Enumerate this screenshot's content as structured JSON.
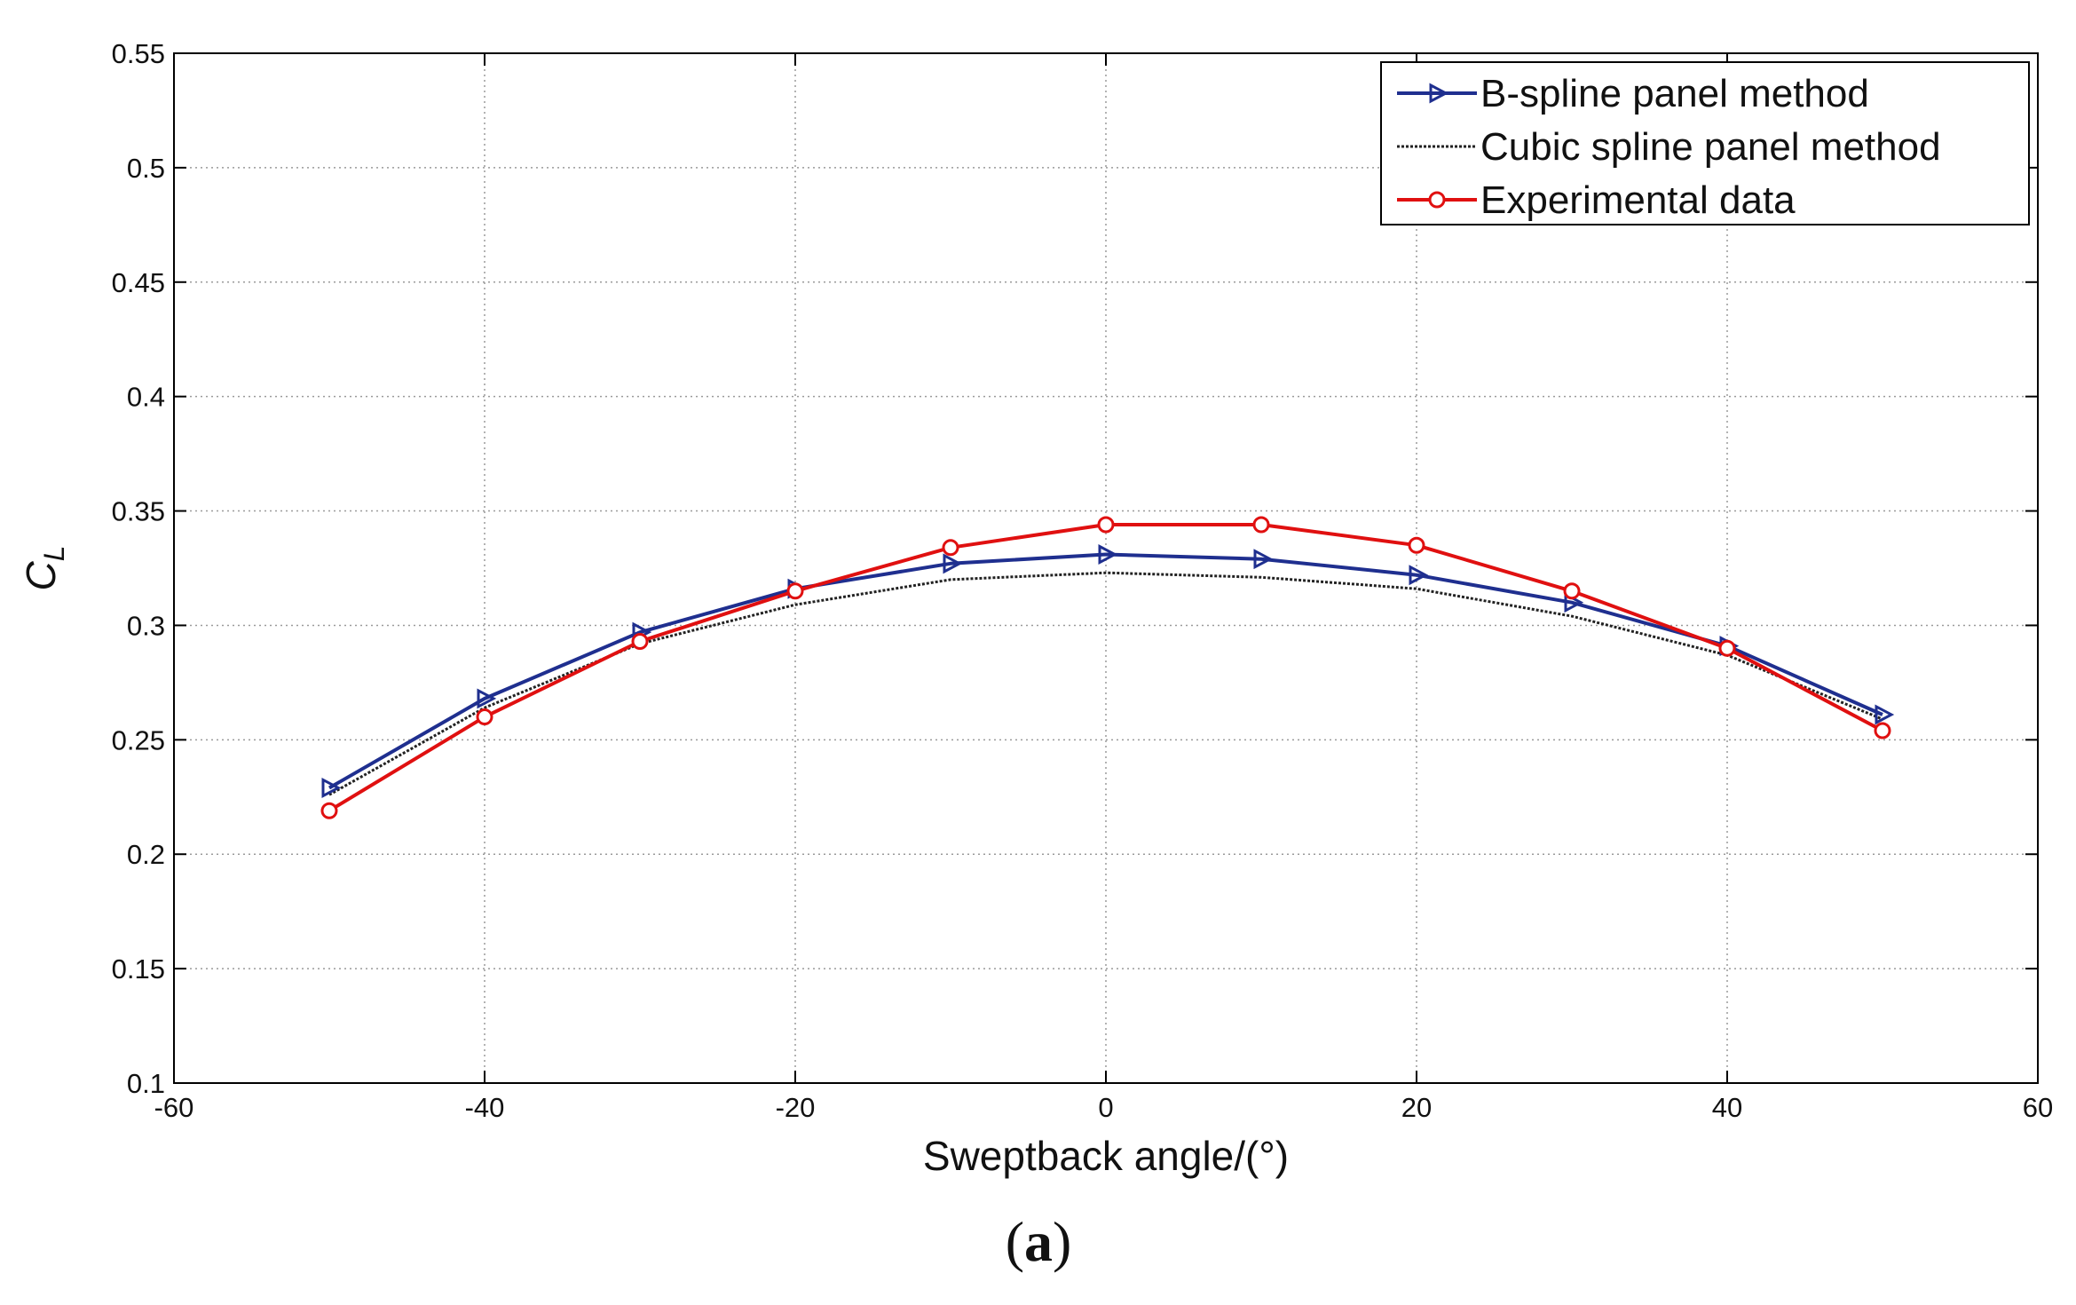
{
  "chart_data": {
    "type": "line",
    "xlabel": "Sweptback angle/(°)",
    "ylabel_main": "C",
    "ylabel_sub": "L",
    "xlim": [
      -60,
      60
    ],
    "ylim": [
      0.1,
      0.55
    ],
    "x_ticks": [
      -60,
      -40,
      -20,
      0,
      20,
      40,
      60
    ],
    "y_ticks": [
      0.1,
      0.15,
      0.2,
      0.25,
      0.3,
      0.35,
      0.4,
      0.45,
      0.5,
      0.55
    ],
    "x_tick_labels": [
      "-60",
      "-40",
      "-20",
      "0",
      "20",
      "40",
      "60"
    ],
    "y_tick_labels": [
      "0.1",
      "0.15",
      "0.2",
      "0.25",
      "0.3",
      "0.35",
      "0.4",
      "0.45",
      "0.5",
      "0.55"
    ],
    "grid": true,
    "legend_position": "top-right",
    "x": [
      -50,
      -40,
      -30,
      -20,
      -10,
      0,
      10,
      20,
      30,
      40,
      50
    ],
    "series": [
      {
        "name": "B-spline panel method",
        "color": "#1f2f8f",
        "marker": "triangle-right",
        "line": "solid",
        "values": [
          0.229,
          0.268,
          0.297,
          0.316,
          0.327,
          0.331,
          0.329,
          0.322,
          0.31,
          0.291,
          0.261
        ]
      },
      {
        "name": "Cubic spline panel method",
        "color": "#222222",
        "marker": "none",
        "line": "dotted",
        "values": [
          0.226,
          0.264,
          0.292,
          0.309,
          0.32,
          0.323,
          0.321,
          0.316,
          0.304,
          0.287,
          0.259
        ]
      },
      {
        "name": "Experimental data",
        "color": "#e01010",
        "marker": "circle",
        "line": "solid",
        "values": [
          0.219,
          0.26,
          0.293,
          0.315,
          0.334,
          0.344,
          0.344,
          0.335,
          0.315,
          0.29,
          0.254
        ]
      }
    ]
  },
  "caption": {
    "open": "(",
    "letter": "a",
    "close": ")"
  }
}
